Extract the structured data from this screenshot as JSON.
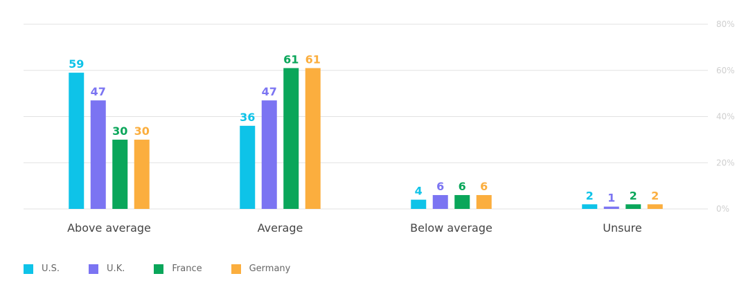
{
  "chart_data": {
    "type": "bar",
    "categories": [
      "Above average",
      "Average",
      "Below average",
      "Unsure"
    ],
    "series": [
      {
        "name": "U.S.",
        "color": "#0ec3e8",
        "values": [
          59,
          36,
          4,
          2
        ]
      },
      {
        "name": "U.K.",
        "color": "#7b74f2",
        "values": [
          47,
          47,
          6,
          1
        ]
      },
      {
        "name": "France",
        "color": "#0aa65a",
        "values": [
          30,
          61,
          6,
          2
        ]
      },
      {
        "name": "Germany",
        "color": "#fbae3e",
        "values": [
          30,
          61,
          6,
          2
        ]
      }
    ],
    "ylim": [
      0,
      80
    ],
    "yticks": [
      "0%",
      "20%",
      "40%",
      "60%",
      "80%"
    ],
    "ytick_values": [
      0,
      20,
      40,
      60,
      80
    ],
    "grid": true,
    "legend_position": "bottom-left"
  }
}
